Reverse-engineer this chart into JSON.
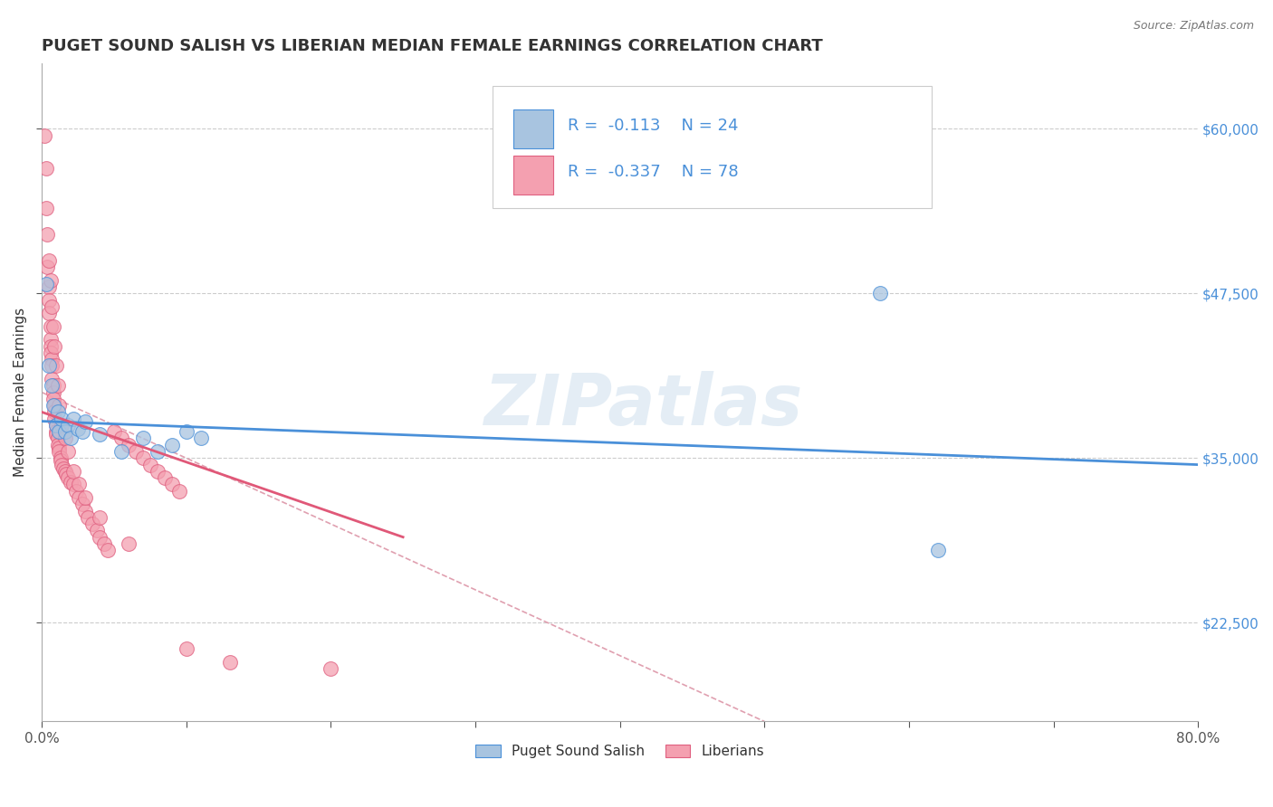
{
  "title": "PUGET SOUND SALISH VS LIBERIAN MEDIAN FEMALE EARNINGS CORRELATION CHART",
  "source_text": "Source: ZipAtlas.com",
  "xlabel": "",
  "ylabel": "Median Female Earnings",
  "xlim": [
    0.0,
    0.8
  ],
  "ylim": [
    15000,
    65000
  ],
  "yticks": [
    22500,
    35000,
    47500,
    60000
  ],
  "ytick_labels": [
    "$22,500",
    "$35,000",
    "$47,500",
    "$60,000"
  ],
  "xticks": [
    0.0,
    0.1,
    0.2,
    0.3,
    0.4,
    0.5,
    0.6,
    0.7,
    0.8
  ],
  "xtick_labels": [
    "0.0%",
    "",
    "",
    "",
    "",
    "",
    "",
    "",
    "80.0%"
  ],
  "blue_color": "#a8c4e0",
  "pink_color": "#f4a0b0",
  "trend_blue": "#4a90d9",
  "trend_pink": "#e05878",
  "diag_color": "#e0a0b0",
  "watermark": "ZIPatlas",
  "background_color": "#ffffff",
  "blue_scatter": [
    [
      0.003,
      48200
    ],
    [
      0.005,
      42000
    ],
    [
      0.007,
      40500
    ],
    [
      0.008,
      39000
    ],
    [
      0.01,
      37500
    ],
    [
      0.011,
      38500
    ],
    [
      0.012,
      37000
    ],
    [
      0.014,
      38000
    ],
    [
      0.016,
      37000
    ],
    [
      0.018,
      37500
    ],
    [
      0.02,
      36500
    ],
    [
      0.022,
      38000
    ],
    [
      0.025,
      37200
    ],
    [
      0.028,
      37000
    ],
    [
      0.03,
      37800
    ],
    [
      0.04,
      36800
    ],
    [
      0.055,
      35500
    ],
    [
      0.07,
      36500
    ],
    [
      0.08,
      35500
    ],
    [
      0.09,
      36000
    ],
    [
      0.1,
      37000
    ],
    [
      0.11,
      36500
    ],
    [
      0.58,
      47500
    ],
    [
      0.62,
      28000
    ]
  ],
  "pink_scatter": [
    [
      0.002,
      59500
    ],
    [
      0.003,
      57000
    ],
    [
      0.003,
      54000
    ],
    [
      0.004,
      52000
    ],
    [
      0.004,
      49500
    ],
    [
      0.005,
      48000
    ],
    [
      0.005,
      47000
    ],
    [
      0.005,
      46000
    ],
    [
      0.006,
      45000
    ],
    [
      0.006,
      44000
    ],
    [
      0.006,
      43500
    ],
    [
      0.006,
      43000
    ],
    [
      0.007,
      42500
    ],
    [
      0.007,
      42000
    ],
    [
      0.007,
      41000
    ],
    [
      0.008,
      40500
    ],
    [
      0.008,
      40000
    ],
    [
      0.008,
      39500
    ],
    [
      0.009,
      39000
    ],
    [
      0.009,
      38500
    ],
    [
      0.009,
      38000
    ],
    [
      0.01,
      37500
    ],
    [
      0.01,
      37000
    ],
    [
      0.01,
      36800
    ],
    [
      0.011,
      36500
    ],
    [
      0.011,
      36000
    ],
    [
      0.012,
      35800
    ],
    [
      0.012,
      35500
    ],
    [
      0.013,
      35000
    ],
    [
      0.013,
      34800
    ],
    [
      0.014,
      34500
    ],
    [
      0.015,
      34200
    ],
    [
      0.016,
      34000
    ],
    [
      0.017,
      33800
    ],
    [
      0.018,
      33500
    ],
    [
      0.02,
      33200
    ],
    [
      0.022,
      33000
    ],
    [
      0.024,
      32500
    ],
    [
      0.026,
      32000
    ],
    [
      0.028,
      31500
    ],
    [
      0.03,
      31000
    ],
    [
      0.032,
      30500
    ],
    [
      0.035,
      30000
    ],
    [
      0.038,
      29500
    ],
    [
      0.04,
      29000
    ],
    [
      0.043,
      28500
    ],
    [
      0.046,
      28000
    ],
    [
      0.05,
      37000
    ],
    [
      0.055,
      36500
    ],
    [
      0.06,
      36000
    ],
    [
      0.065,
      35500
    ],
    [
      0.07,
      35000
    ],
    [
      0.075,
      34500
    ],
    [
      0.08,
      34000
    ],
    [
      0.085,
      33500
    ],
    [
      0.09,
      33000
    ],
    [
      0.095,
      32500
    ],
    [
      0.005,
      50000
    ],
    [
      0.006,
      48500
    ],
    [
      0.007,
      46500
    ],
    [
      0.008,
      45000
    ],
    [
      0.009,
      43500
    ],
    [
      0.01,
      42000
    ],
    [
      0.011,
      40500
    ],
    [
      0.012,
      39000
    ],
    [
      0.014,
      37500
    ],
    [
      0.016,
      36500
    ],
    [
      0.018,
      35500
    ],
    [
      0.022,
      34000
    ],
    [
      0.026,
      33000
    ],
    [
      0.03,
      32000
    ],
    [
      0.04,
      30500
    ],
    [
      0.06,
      28500
    ],
    [
      0.1,
      20500
    ],
    [
      0.13,
      19500
    ],
    [
      0.2,
      19000
    ]
  ],
  "blue_line_x": [
    0.0,
    0.8
  ],
  "blue_line_y": [
    37800,
    34500
  ],
  "pink_line_x": [
    0.0,
    0.25
  ],
  "pink_line_y": [
    38500,
    29000
  ],
  "diag_line_x": [
    0.0,
    0.5
  ],
  "diag_line_y": [
    40000,
    15000
  ],
  "title_fontsize": 13,
  "label_fontsize": 11,
  "tick_fontsize": 11,
  "legend_fontsize": 13
}
